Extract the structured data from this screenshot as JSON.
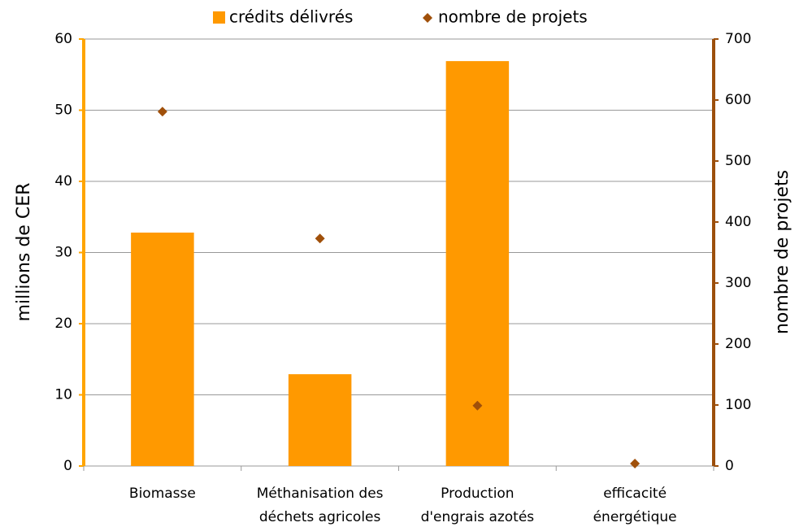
{
  "chart_data": {
    "type": "bar",
    "categories": [
      [
        "Biomasse"
      ],
      [
        "Méthanisation des",
        "déchets agricoles"
      ],
      [
        "Production",
        "d'engrais azotés"
      ],
      [
        "efficacité",
        "énergétique"
      ]
    ],
    "series": [
      {
        "name": "crédits délivrés",
        "type": "bar",
        "color": "#ff9900",
        "values": [
          32.8,
          12.9,
          56.9,
          0
        ]
      },
      {
        "name": "nombre de projets",
        "type": "scatter",
        "axis": "y2",
        "color": "#a0500a",
        "values": [
          581,
          373,
          99,
          4
        ]
      }
    ],
    "y_label": "millions de CER",
    "y2_label": "nombre de projets",
    "ylim": [
      0,
      60
    ],
    "yticks": [
      0,
      10,
      20,
      30,
      40,
      50,
      60
    ],
    "y2lim": [
      0,
      700
    ],
    "y2ticks": [
      0,
      100,
      200,
      300,
      400,
      500,
      600,
      700
    ],
    "grid": true,
    "legend": "top",
    "y_axis_color": "#ffa500",
    "y2_axis_color": "#9c4f0c"
  }
}
